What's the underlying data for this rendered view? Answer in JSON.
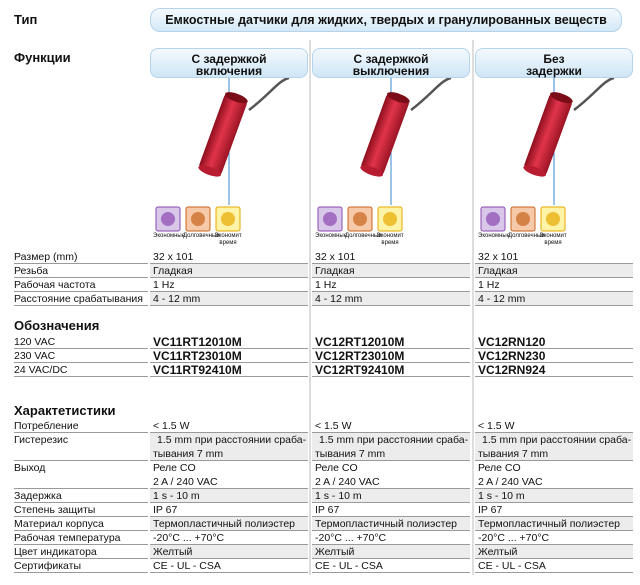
{
  "header": {
    "type_label": "Тип",
    "type_value": "Емкостные датчики для жидких, твердых и гранулированных веществ",
    "functions_label": "Функции"
  },
  "columns": [
    {
      "function": [
        "С задержкой",
        "включения"
      ]
    },
    {
      "function": [
        "С задержкой",
        "выключения"
      ]
    },
    {
      "function": [
        "Без",
        "задержки"
      ]
    }
  ],
  "icons": [
    "Экономные",
    "Долговечные",
    "Экономит время"
  ],
  "specs": {
    "rows": [
      {
        "label": "Размер (mm)",
        "values": [
          "32 x 101",
          "32 x 101",
          "32 x 101"
        ]
      },
      {
        "label": "Резьба",
        "values": [
          "Гладкая",
          "Гладкая",
          "Гладкая"
        ]
      },
      {
        "label": "Рабочая частота",
        "values": [
          "1 Hz",
          "1 Hz",
          "1 Hz"
        ]
      },
      {
        "label": "Расстояние срабатывания",
        "values": [
          "4 - 12 mm",
          "4 - 12 mm",
          "4 - 12 mm"
        ]
      }
    ]
  },
  "designations": {
    "title": "Обозначения",
    "rows": [
      {
        "label": "120 VAC",
        "values": [
          "VC11RT12010M",
          "VC12RT12010M",
          "VC12RN120"
        ]
      },
      {
        "label": "230 VAC",
        "values": [
          "VC11RT23010M",
          "VC12RT23010M",
          "VC12RN230"
        ]
      },
      {
        "label": "24 VAC/DC",
        "values": [
          "VC11RT92410M",
          "VC12RT92410M",
          "VC12RN924"
        ]
      }
    ]
  },
  "characteristics": {
    "title": "Характетистики",
    "rows": [
      {
        "label": "Потребление",
        "values": [
          "< 1.5 W",
          "< 1.5 W",
          "< 1.5 W"
        ]
      },
      {
        "label": "Гистерезис",
        "values": [
          [
            "1.5 mm при расстоянии сраба-",
            "тывания 7 mm"
          ],
          [
            "1.5 mm при расстоянии сраба-",
            "тывания 7 mm"
          ],
          [
            "1.5 mm при расстоянии сраба-",
            "тывания 7 mm"
          ]
        ]
      },
      {
        "label": "Выход",
        "values": [
          [
            "Реле CO",
            "2 A / 240 VAC"
          ],
          [
            "Реле CO",
            "2 A / 240 VAC"
          ],
          [
            "Реле CO",
            "2 A / 240 VAC"
          ]
        ]
      },
      {
        "label": "Задержка",
        "values": [
          "1 s - 10 m",
          "1 s - 10 m",
          "1 s - 10 m"
        ]
      },
      {
        "label": "Степень защиты",
        "values": [
          "IP 67",
          "IP 67",
          "IP 67"
        ]
      },
      {
        "label": "Материал корпуса",
        "values": [
          "Термопластичный полиэстер",
          "Термопластичный полиэстер",
          "Термопластичный полиэстер"
        ]
      },
      {
        "label": "Рабочая температура",
        "values": [
          "-20°C ... +70°C",
          "-20°C ... +70°C",
          "-20°C ... +70°C"
        ]
      },
      {
        "label": "Цвет индикатора",
        "values": [
          "Желтый",
          "Желтый",
          "Желтый"
        ]
      },
      {
        "label": "Сертификаты",
        "values": [
          "CE - UL - CSA",
          "CE - UL - CSA",
          "CE - UL - CSA"
        ]
      }
    ]
  }
}
